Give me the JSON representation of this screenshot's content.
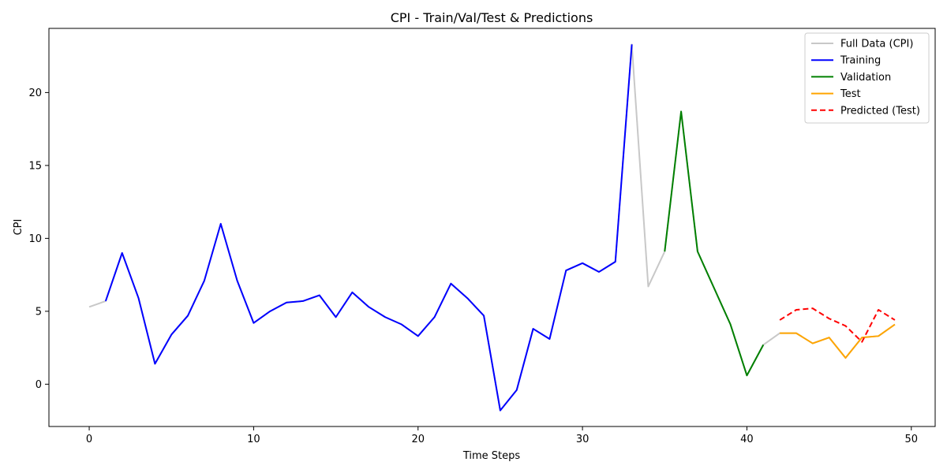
{
  "chart_data": {
    "type": "line",
    "title": "CPI - Train/Val/Test & Predictions",
    "xlabel": "Time Steps",
    "ylabel": "CPI",
    "xlim": [
      -2.45,
      51.45
    ],
    "ylim": [
      -2.9,
      24.4
    ],
    "x_ticks": [
      0,
      10,
      20,
      30,
      40,
      50
    ],
    "y_ticks": [
      0,
      5,
      10,
      15,
      20
    ],
    "grid": false,
    "legend_position": "top-right",
    "series": [
      {
        "name": "Full Data (CPI)",
        "color": "#c8c8c8",
        "style": "solid",
        "x": [
          0,
          1,
          2,
          3,
          4,
          5,
          6,
          7,
          8,
          9,
          10,
          11,
          12,
          13,
          14,
          15,
          16,
          17,
          18,
          19,
          20,
          21,
          22,
          23,
          24,
          25,
          26,
          27,
          28,
          29,
          30,
          31,
          32,
          33,
          34,
          35,
          36,
          37,
          38,
          39,
          40,
          41,
          42,
          43,
          44,
          45,
          46,
          47,
          48,
          49
        ],
        "y": [
          5.3,
          5.7,
          9.0,
          5.9,
          1.4,
          3.4,
          4.7,
          7.1,
          11.0,
          7.1,
          4.2,
          5.0,
          5.6,
          5.7,
          6.1,
          4.6,
          6.3,
          5.3,
          4.6,
          4.1,
          3.3,
          4.6,
          6.9,
          5.9,
          4.7,
          -1.8,
          -0.4,
          3.8,
          3.1,
          7.8,
          8.3,
          7.7,
          8.4,
          23.3,
          6.7,
          9.1,
          18.7,
          9.1,
          6.6,
          4.1,
          0.6,
          2.7,
          3.5,
          3.5,
          2.8,
          3.2,
          1.8,
          3.2,
          3.3,
          4.1
        ]
      },
      {
        "name": "Training",
        "color": "#0000ff",
        "style": "solid",
        "x": [
          1,
          2,
          3,
          4,
          5,
          6,
          7,
          8,
          9,
          10,
          11,
          12,
          13,
          14,
          15,
          16,
          17,
          18,
          19,
          20,
          21,
          22,
          23,
          24,
          25,
          26,
          27,
          28,
          29,
          30,
          31,
          32,
          33
        ],
        "y": [
          5.7,
          9.0,
          5.9,
          1.4,
          3.4,
          4.7,
          7.1,
          11.0,
          7.1,
          4.2,
          5.0,
          5.6,
          5.7,
          6.1,
          4.6,
          6.3,
          5.3,
          4.6,
          4.1,
          3.3,
          4.6,
          6.9,
          5.9,
          4.7,
          -1.8,
          -0.4,
          3.8,
          3.1,
          7.8,
          8.3,
          7.7,
          8.4,
          23.3
        ]
      },
      {
        "name": "Validation",
        "color": "#008000",
        "style": "solid",
        "x": [
          35,
          36,
          37,
          38,
          39,
          40,
          41
        ],
        "y": [
          9.1,
          18.7,
          9.1,
          6.6,
          4.1,
          0.6,
          2.7
        ]
      },
      {
        "name": "Test",
        "color": "#ffa500",
        "style": "solid",
        "x": [
          42,
          43,
          44,
          45,
          46,
          47,
          48,
          49
        ],
        "y": [
          3.5,
          3.5,
          2.8,
          3.2,
          1.8,
          3.2,
          3.3,
          4.1
        ]
      },
      {
        "name": "Predicted (Test)",
        "color": "#ff0000",
        "style": "dashed",
        "x": [
          42,
          43,
          44,
          45,
          46,
          47,
          48,
          49
        ],
        "y": [
          4.4,
          5.1,
          5.2,
          4.5,
          4.0,
          2.9,
          5.1,
          4.4
        ]
      }
    ]
  }
}
